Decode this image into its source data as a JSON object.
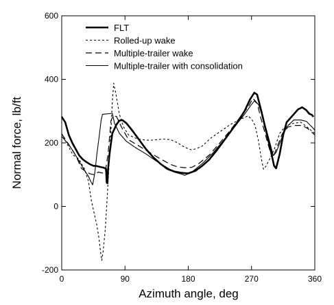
{
  "chart_data": {
    "type": "line",
    "title": "",
    "xlabel": "Azimuth angle, deg",
    "ylabel": "Normal force,  lb/ft",
    "xlim": [
      0,
      360
    ],
    "ylim": [
      -200,
      600
    ],
    "xticks": [
      0,
      90,
      180,
      270,
      360
    ],
    "yticks": [
      -200,
      0,
      200,
      400,
      600
    ],
    "xtick_labels": [
      "0",
      "90",
      "180",
      "270",
      "360"
    ],
    "ytick_labels": [
      "-200",
      "0",
      "200",
      "400",
      "600"
    ],
    "grid": false,
    "legend_position": "top-center",
    "series": [
      {
        "name": "FLT",
        "style": "solid-thick",
        "color": "#000000",
        "points": [
          [
            0,
            282
          ],
          [
            5,
            265
          ],
          [
            10,
            225
          ],
          [
            15,
            200
          ],
          [
            20,
            180
          ],
          [
            25,
            160
          ],
          [
            30,
            148
          ],
          [
            35,
            140
          ],
          [
            40,
            133
          ],
          [
            45,
            128
          ],
          [
            50,
            127
          ],
          [
            55,
            124
          ],
          [
            60,
            122
          ],
          [
            63,
            118
          ],
          [
            64,
            75
          ],
          [
            65,
            73
          ],
          [
            66,
            118
          ],
          [
            68,
            165
          ],
          [
            72,
            230
          ],
          [
            78,
            258
          ],
          [
            82,
            270
          ],
          [
            86,
            272
          ],
          [
            92,
            262
          ],
          [
            100,
            240
          ],
          [
            110,
            210
          ],
          [
            120,
            180
          ],
          [
            130,
            155
          ],
          [
            140,
            135
          ],
          [
            150,
            118
          ],
          [
            160,
            110
          ],
          [
            170,
            106
          ],
          [
            180,
            104
          ],
          [
            190,
            112
          ],
          [
            200,
            128
          ],
          [
            210,
            148
          ],
          [
            220,
            175
          ],
          [
            230,
            205
          ],
          [
            240,
            235
          ],
          [
            250,
            265
          ],
          [
            260,
            300
          ],
          [
            268,
            337
          ],
          [
            274,
            358
          ],
          [
            278,
            352
          ],
          [
            284,
            300
          ],
          [
            292,
            225
          ],
          [
            298,
            170
          ],
          [
            302,
            128
          ],
          [
            305,
            120
          ],
          [
            310,
            165
          ],
          [
            315,
            225
          ],
          [
            320,
            265
          ],
          [
            328,
            285
          ],
          [
            336,
            305
          ],
          [
            342,
            312
          ],
          [
            348,
            303
          ],
          [
            352,
            292
          ],
          [
            356,
            288
          ],
          [
            358,
            282
          ]
        ]
      },
      {
        "name": "Rolled-up wake",
        "style": "dotted",
        "color": "#000000",
        "points": [
          [
            0,
            230
          ],
          [
            8,
            195
          ],
          [
            16,
            162
          ],
          [
            24,
            150
          ],
          [
            32,
            120
          ],
          [
            38,
            80
          ],
          [
            42,
            20
          ],
          [
            46,
            -20
          ],
          [
            50,
            -60
          ],
          [
            53,
            -100
          ],
          [
            55,
            -140
          ],
          [
            57,
            -170
          ],
          [
            59,
            -140
          ],
          [
            62,
            -70
          ],
          [
            65,
            40
          ],
          [
            67,
            120
          ],
          [
            70,
            240
          ],
          [
            72,
            330
          ],
          [
            74,
            388
          ],
          [
            77,
            355
          ],
          [
            82,
            290
          ],
          [
            88,
            250
          ],
          [
            95,
            225
          ],
          [
            105,
            215
          ],
          [
            115,
            210
          ],
          [
            125,
            208
          ],
          [
            135,
            210
          ],
          [
            145,
            212
          ],
          [
            155,
            210
          ],
          [
            165,
            200
          ],
          [
            175,
            186
          ],
          [
            185,
            178
          ],
          [
            192,
            182
          ],
          [
            200,
            190
          ],
          [
            212,
            215
          ],
          [
            225,
            235
          ],
          [
            240,
            258
          ],
          [
            255,
            275
          ],
          [
            265,
            285
          ],
          [
            270,
            275
          ],
          [
            275,
            255
          ],
          [
            280,
            205
          ],
          [
            284,
            150
          ],
          [
            287,
            117
          ],
          [
            290,
            125
          ],
          [
            296,
            150
          ],
          [
            302,
            178
          ],
          [
            310,
            230
          ],
          [
            318,
            252
          ],
          [
            326,
            260
          ],
          [
            334,
            263
          ],
          [
            340,
            265
          ],
          [
            348,
            252
          ],
          [
            356,
            237
          ],
          [
            360,
            230
          ]
        ]
      },
      {
        "name": "Multiple-trailer  wake",
        "style": "dashed",
        "color": "#000000",
        "points": [
          [
            0,
            228
          ],
          [
            10,
            195
          ],
          [
            20,
            160
          ],
          [
            28,
            120
          ],
          [
            34,
            110
          ],
          [
            40,
            103
          ],
          [
            46,
            100
          ],
          [
            52,
            108
          ],
          [
            58,
            105
          ],
          [
            62,
            110
          ],
          [
            66,
            165
          ],
          [
            70,
            270
          ],
          [
            73,
            285
          ],
          [
            78,
            283
          ],
          [
            85,
            250
          ],
          [
            95,
            210
          ],
          [
            110,
            190
          ],
          [
            125,
            170
          ],
          [
            140,
            150
          ],
          [
            155,
            132
          ],
          [
            165,
            124
          ],
          [
            175,
            122
          ],
          [
            185,
            123
          ],
          [
            195,
            135
          ],
          [
            210,
            162
          ],
          [
            225,
            200
          ],
          [
            240,
            240
          ],
          [
            255,
            285
          ],
          [
            265,
            312
          ],
          [
            272,
            340
          ],
          [
            278,
            325
          ],
          [
            283,
            280
          ],
          [
            288,
            240
          ],
          [
            293,
            200
          ],
          [
            297,
            170
          ],
          [
            300,
            150
          ],
          [
            306,
            185
          ],
          [
            314,
            230
          ],
          [
            322,
            250
          ],
          [
            332,
            255
          ],
          [
            342,
            255
          ],
          [
            350,
            245
          ],
          [
            360,
            225
          ]
        ]
      },
      {
        "name": "Multiple-trailer  with  consolidation",
        "style": "solid-thin",
        "color": "#000000",
        "points": [
          [
            0,
            220
          ],
          [
            8,
            200
          ],
          [
            16,
            175
          ],
          [
            24,
            145
          ],
          [
            32,
            115
          ],
          [
            38,
            95
          ],
          [
            41,
            80
          ],
          [
            44,
            68
          ],
          [
            47,
            105
          ],
          [
            50,
            165
          ],
          [
            53,
            215
          ],
          [
            56,
            270
          ],
          [
            58,
            290
          ],
          [
            72,
            293
          ],
          [
            75,
            262
          ],
          [
            82,
            230
          ],
          [
            92,
            205
          ],
          [
            105,
            185
          ],
          [
            120,
            165
          ],
          [
            135,
            142
          ],
          [
            150,
            122
          ],
          [
            160,
            108
          ],
          [
            170,
            102
          ],
          [
            175,
            98
          ],
          [
            185,
            108
          ],
          [
            200,
            135
          ],
          [
            215,
            168
          ],
          [
            230,
            208
          ],
          [
            245,
            248
          ],
          [
            260,
            290
          ],
          [
            268,
            315
          ],
          [
            274,
            332
          ],
          [
            280,
            320
          ],
          [
            286,
            282
          ],
          [
            292,
            235
          ],
          [
            298,
            185
          ],
          [
            301,
            160
          ],
          [
            305,
            170
          ],
          [
            312,
            210
          ],
          [
            320,
            250
          ],
          [
            330,
            272
          ],
          [
            340,
            272
          ],
          [
            348,
            268
          ],
          [
            356,
            250
          ],
          [
            360,
            240
          ]
        ]
      }
    ]
  }
}
